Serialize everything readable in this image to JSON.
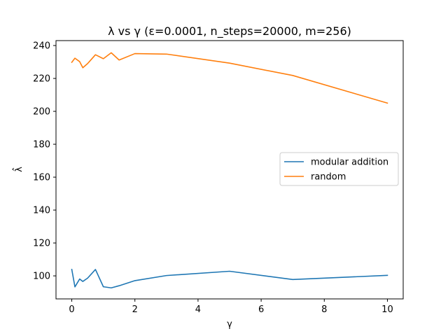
{
  "chart_data": {
    "type": "line",
    "title": "λ vs γ (ε=0.0001, n_steps=20000, m=256)",
    "xlabel": "γ",
    "ylabel": "λ̂",
    "xlim": [
      -0.5,
      10.5
    ],
    "ylim": [
      86,
      243
    ],
    "x_ticks": [
      0,
      2,
      4,
      6,
      8,
      10
    ],
    "y_ticks": [
      100,
      120,
      140,
      160,
      180,
      200,
      220,
      240
    ],
    "grid": false,
    "legend_position": "center-right",
    "series": [
      {
        "name": "modular addition",
        "color": "#1f77b4",
        "x": [
          0.0,
          0.1,
          0.25,
          0.35,
          0.5,
          0.75,
          1.0,
          1.25,
          1.5,
          2.0,
          3.0,
          5.0,
          7.0,
          10.0
        ],
        "y": [
          103.9,
          93.3,
          98.1,
          96.6,
          98.6,
          103.9,
          93.4,
          92.7,
          94.0,
          97.1,
          100.2,
          102.8,
          97.8,
          100.3
        ]
      },
      {
        "name": "random",
        "color": "#ff7f0e",
        "x": [
          0.0,
          0.1,
          0.25,
          0.35,
          0.5,
          0.75,
          1.0,
          1.25,
          1.5,
          2.0,
          3.0,
          5.0,
          7.0,
          10.0
        ],
        "y": [
          229.8,
          232.3,
          230.2,
          226.5,
          229.0,
          234.4,
          232.0,
          235.6,
          231.2,
          235.1,
          234.8,
          229.3,
          221.8,
          205.0
        ]
      }
    ]
  }
}
